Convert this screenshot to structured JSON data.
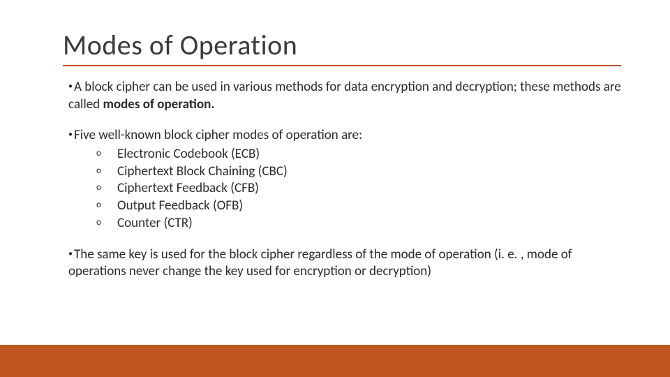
{
  "slide": {
    "title": "Modes of Operation",
    "accent_color": "#c05522",
    "background_color": "#ffffff",
    "text_color": "#2a2a2a",
    "title_fontsize": 40,
    "body_fontsize": 19,
    "bullets": [
      {
        "prefix": "A block cipher can be used in various methods for data encryption and decryption; these methods are called ",
        "bold": "modes of operation.",
        "suffix": ""
      },
      {
        "text": "Five well-known block cipher modes of operation are:",
        "sublist": [
          "Electronic Codebook (ECB)",
          "Ciphertext Block Chaining (CBC)",
          "Ciphertext Feedback (CFB)",
          "Output Feedback (OFB)",
          "Counter (CTR)"
        ]
      },
      {
        "text": "The same key is used for the block cipher regardless of the mode of operation (i. e. , mode of operations never change the key used for encryption or decryption)"
      }
    ],
    "sub_marker": "o",
    "bottom_bar_height": 46
  }
}
